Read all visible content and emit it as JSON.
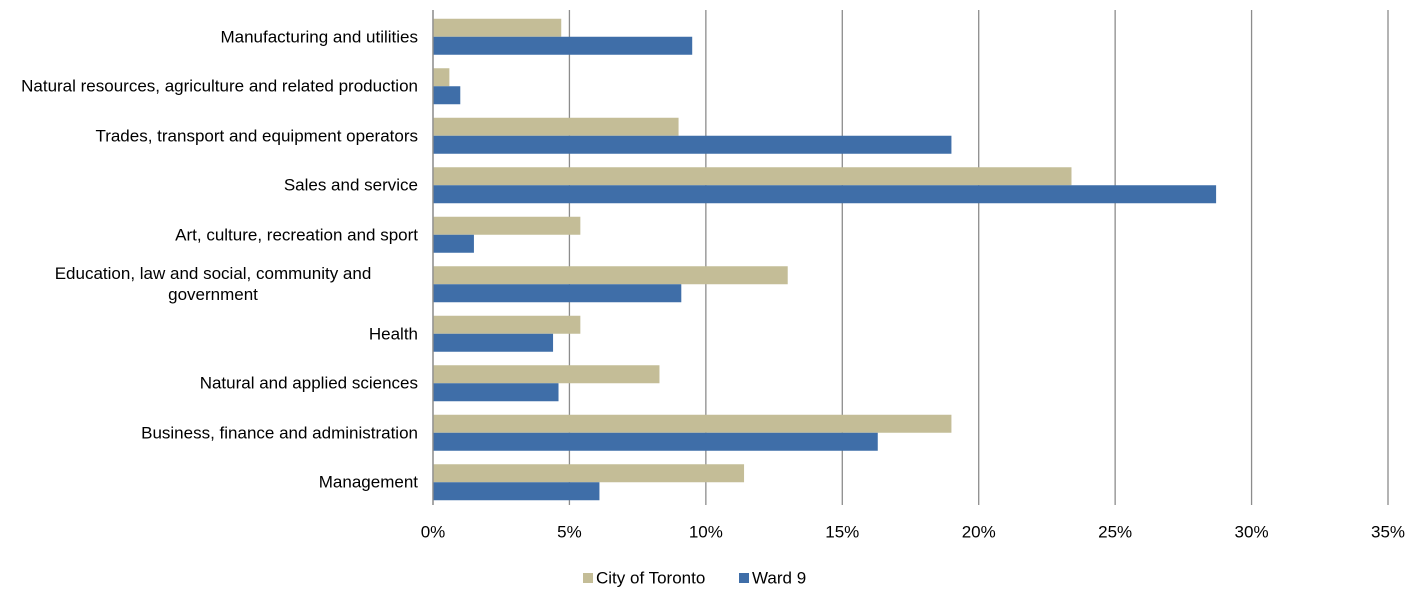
{
  "chart_data": {
    "type": "hbar",
    "categories": [
      "Manufacturing and utilities",
      "Natural resources, agriculture and related production",
      "Trades, transport and equipment operators",
      "Sales and service",
      "Art, culture, recreation and sport",
      "Education, law and social, community and government",
      "Health",
      "Natural and applied sciences",
      "Business, finance and administration",
      "Management"
    ],
    "series": [
      {
        "name": "City of Toronto",
        "color": "#c4bd97",
        "values": [
          4.7,
          0.6,
          9.0,
          23.4,
          5.4,
          13.0,
          5.4,
          8.3,
          19.0,
          11.4
        ]
      },
      {
        "name": "Ward 9",
        "color": "#3f6ea8",
        "values": [
          9.5,
          1.0,
          19.0,
          28.7,
          1.5,
          9.1,
          4.4,
          4.6,
          16.3,
          6.1
        ]
      }
    ],
    "xlim": [
      0,
      35
    ],
    "xticks": [
      {
        "value": 0,
        "label": "0%"
      },
      {
        "value": 5,
        "label": "5%"
      },
      {
        "value": 10,
        "label": "10%"
      },
      {
        "value": 15,
        "label": "15%"
      },
      {
        "value": 20,
        "label": "20%"
      },
      {
        "value": 25,
        "label": "25%"
      },
      {
        "value": 30,
        "label": "30%"
      },
      {
        "value": 35,
        "label": "35%"
      }
    ],
    "grid": true,
    "legend": "bottom"
  }
}
